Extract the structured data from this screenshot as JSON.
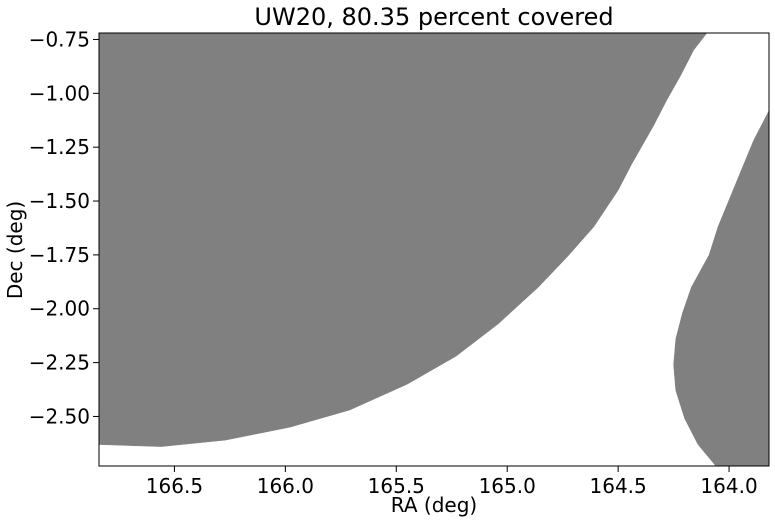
{
  "chart_data": {
    "type": "area",
    "title": "UW20, 80.35 percent covered",
    "xlabel": "RA (deg)",
    "ylabel": "Dec (deg)",
    "xlim": [
      166.84,
      163.82
    ],
    "ylim": [
      -2.73,
      -0.72
    ],
    "x_reversed": true,
    "grid": false,
    "fill_color": "#808080",
    "x_ticks": [
      {
        "value": 166.5,
        "label": "166.5"
      },
      {
        "value": 166.0,
        "label": "166.0"
      },
      {
        "value": 165.5,
        "label": "165.5"
      },
      {
        "value": 165.0,
        "label": "165.0"
      },
      {
        "value": 164.5,
        "label": "164.5"
      },
      {
        "value": 164.0,
        "label": "164.0"
      }
    ],
    "y_ticks": [
      {
        "value": -0.75,
        "label": "−0.75"
      },
      {
        "value": -1.0,
        "label": "−1.00"
      },
      {
        "value": -1.25,
        "label": "−1.25"
      },
      {
        "value": -1.5,
        "label": "−1.50"
      },
      {
        "value": -1.75,
        "label": "−1.75"
      },
      {
        "value": -2.0,
        "label": "−2.00"
      },
      {
        "value": -2.25,
        "label": "−2.25"
      },
      {
        "value": -2.5,
        "label": "−2.50"
      }
    ],
    "covered_regions": [
      {
        "points": [
          [
            166.84,
            -0.72
          ],
          [
            164.1,
            -0.72
          ],
          [
            164.16,
            -0.8
          ],
          [
            164.22,
            -0.92
          ],
          [
            164.28,
            -1.03
          ],
          [
            164.34,
            -1.15
          ],
          [
            164.44,
            -1.33
          ],
          [
            164.5,
            -1.45
          ],
          [
            164.61,
            -1.62
          ],
          [
            164.73,
            -1.76
          ],
          [
            164.86,
            -1.9
          ],
          [
            165.04,
            -2.07
          ],
          [
            165.23,
            -2.22
          ],
          [
            165.45,
            -2.35
          ],
          [
            165.71,
            -2.47
          ],
          [
            165.98,
            -2.55
          ],
          [
            166.27,
            -2.61
          ],
          [
            166.56,
            -2.64
          ],
          [
            166.84,
            -2.63
          ]
        ]
      },
      {
        "points": [
          [
            163.82,
            -1.08
          ],
          [
            163.89,
            -1.22
          ],
          [
            163.97,
            -1.42
          ],
          [
            164.05,
            -1.62
          ],
          [
            164.09,
            -1.75
          ],
          [
            164.17,
            -1.9
          ],
          [
            164.21,
            -2.02
          ],
          [
            164.24,
            -2.14
          ],
          [
            164.25,
            -2.26
          ],
          [
            164.24,
            -2.38
          ],
          [
            164.2,
            -2.51
          ],
          [
            164.14,
            -2.63
          ],
          [
            164.06,
            -2.73
          ],
          [
            163.82,
            -2.73
          ]
        ]
      }
    ]
  }
}
